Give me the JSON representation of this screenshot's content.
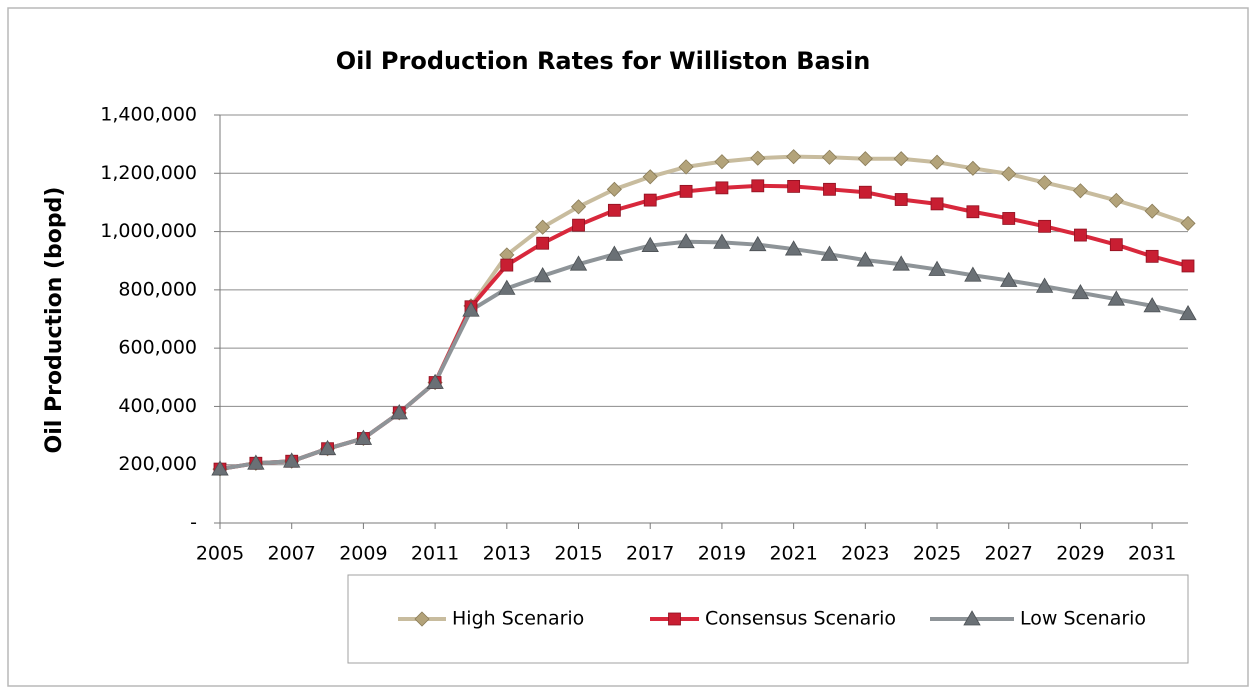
{
  "chart_data": {
    "type": "line",
    "title": "Oil Production Rates for Williston Basin",
    "ylabel": "Oil Production (bopd)",
    "x": [
      2005,
      2006,
      2007,
      2008,
      2009,
      2010,
      2011,
      2012,
      2013,
      2014,
      2015,
      2016,
      2017,
      2018,
      2019,
      2020,
      2021,
      2022,
      2023,
      2024,
      2025,
      2026,
      2027,
      2028,
      2029,
      2030,
      2031,
      2032
    ],
    "xlim": [
      2005,
      2032
    ],
    "xticks": [
      2005,
      2007,
      2009,
      2011,
      2013,
      2015,
      2017,
      2019,
      2021,
      2023,
      2025,
      2027,
      2029,
      2031
    ],
    "ylim": [
      0,
      1400000
    ],
    "yticks": [
      {
        "value": 0,
        "label": "-"
      },
      {
        "value": 200000,
        "label": "200,000"
      },
      {
        "value": 400000,
        "label": "400,000"
      },
      {
        "value": 600000,
        "label": "600,000"
      },
      {
        "value": 800000,
        "label": "800,000"
      },
      {
        "value": 1000000,
        "label": "1,000,000"
      },
      {
        "value": 1200000,
        "label": "1,200,000"
      },
      {
        "value": 1400000,
        "label": "1,400,000"
      }
    ],
    "grid": true,
    "legend": "bottom",
    "series": [
      {
        "name": "High Scenario",
        "color": "#c8bc9e",
        "marker_color": "#b3a37a",
        "marker": "diamond",
        "values": [
          185000,
          205000,
          212000,
          255000,
          290000,
          378000,
          482000,
          745000,
          920000,
          1015000,
          1085000,
          1145000,
          1188000,
          1222000,
          1240000,
          1252000,
          1257000,
          1255000,
          1250000,
          1250000,
          1238000,
          1217000,
          1198000,
          1168000,
          1140000,
          1107000,
          1070000,
          1028000
        ]
      },
      {
        "name": "Consensus Scenario",
        "color": "#d8283c",
        "marker_color": "#c81e32",
        "marker": "square",
        "values": [
          185000,
          205000,
          212000,
          255000,
          290000,
          378000,
          482000,
          742000,
          885000,
          960000,
          1022000,
          1073000,
          1108000,
          1138000,
          1150000,
          1157000,
          1155000,
          1145000,
          1135000,
          1110000,
          1095000,
          1068000,
          1045000,
          1018000,
          988000,
          955000,
          915000,
          882000
        ]
      },
      {
        "name": "Low Scenario",
        "color": "#8e9498",
        "marker_color": "#6a7075",
        "marker": "triangle",
        "values": [
          185000,
          205000,
          212000,
          255000,
          290000,
          378000,
          482000,
          730000,
          805000,
          848000,
          888000,
          922000,
          952000,
          965000,
          963000,
          955000,
          940000,
          922000,
          902000,
          888000,
          870000,
          850000,
          832000,
          812000,
          790000,
          768000,
          745000,
          718000
        ]
      }
    ]
  }
}
